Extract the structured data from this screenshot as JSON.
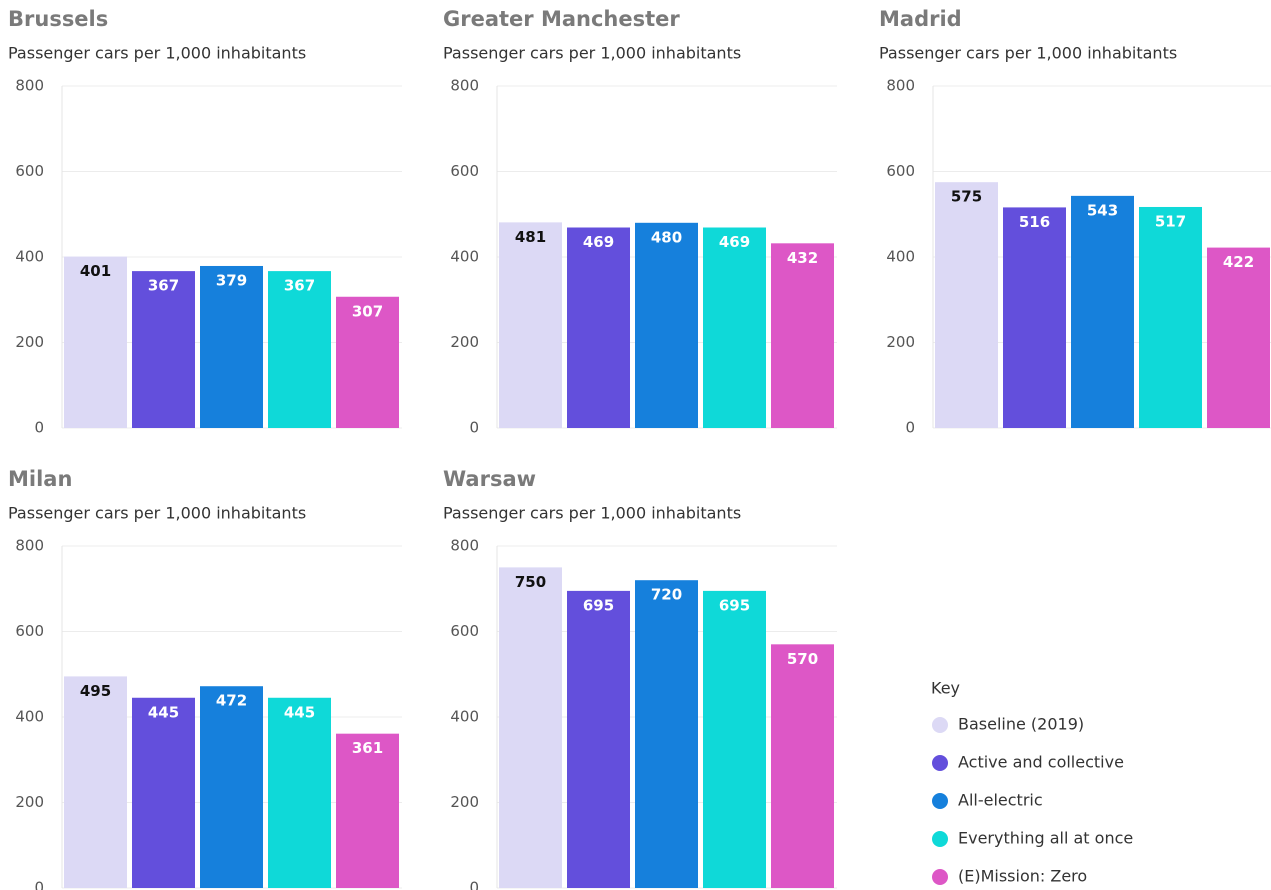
{
  "chart_data": [
    {
      "type": "bar",
      "title": "Brussels",
      "subtitle": "Passenger cars per 1,000 inhabitants",
      "values": [
        401,
        367,
        379,
        367,
        307
      ],
      "ylim": [
        0,
        800
      ],
      "yticks": [
        0,
        200,
        400,
        600,
        800
      ],
      "grid": true
    },
    {
      "type": "bar",
      "title": "Greater Manchester",
      "subtitle": "Passenger cars per 1,000 inhabitants",
      "values": [
        481,
        469,
        480,
        469,
        432
      ],
      "ylim": [
        0,
        800
      ],
      "yticks": [
        0,
        200,
        400,
        600,
        800
      ],
      "grid": true
    },
    {
      "type": "bar",
      "title": "Madrid",
      "subtitle": "Passenger cars per 1,000 inhabitants",
      "values": [
        575,
        516,
        543,
        517,
        422
      ],
      "ylim": [
        0,
        800
      ],
      "yticks": [
        0,
        200,
        400,
        600,
        800
      ],
      "grid": true
    },
    {
      "type": "bar",
      "title": "Milan",
      "subtitle": "Passenger cars per 1,000 inhabitants",
      "values": [
        495,
        445,
        472,
        445,
        361
      ],
      "ylim": [
        0,
        800
      ],
      "yticks": [
        0,
        200,
        400,
        600,
        800
      ],
      "grid": true
    },
    {
      "type": "bar",
      "title": "Warsaw",
      "subtitle": "Passenger cars per 1,000 inhabitants",
      "values": [
        750,
        695,
        720,
        695,
        570
      ],
      "ylim": [
        0,
        800
      ],
      "yticks": [
        0,
        200,
        400,
        600,
        800
      ],
      "grid": true
    }
  ],
  "legend": {
    "title": "Key",
    "entries": [
      {
        "name": "Baseline (2019)",
        "color": "#dcd9f5"
      },
      {
        "name": "Active and collective",
        "color": "#634fdc"
      },
      {
        "name": "All-electric",
        "color": "#1680dc"
      },
      {
        "name": "Everything all at once",
        "color": "#0fd9d8"
      },
      {
        "name": "(E)Mission: Zero",
        "color": "#dd57c6"
      }
    ]
  }
}
